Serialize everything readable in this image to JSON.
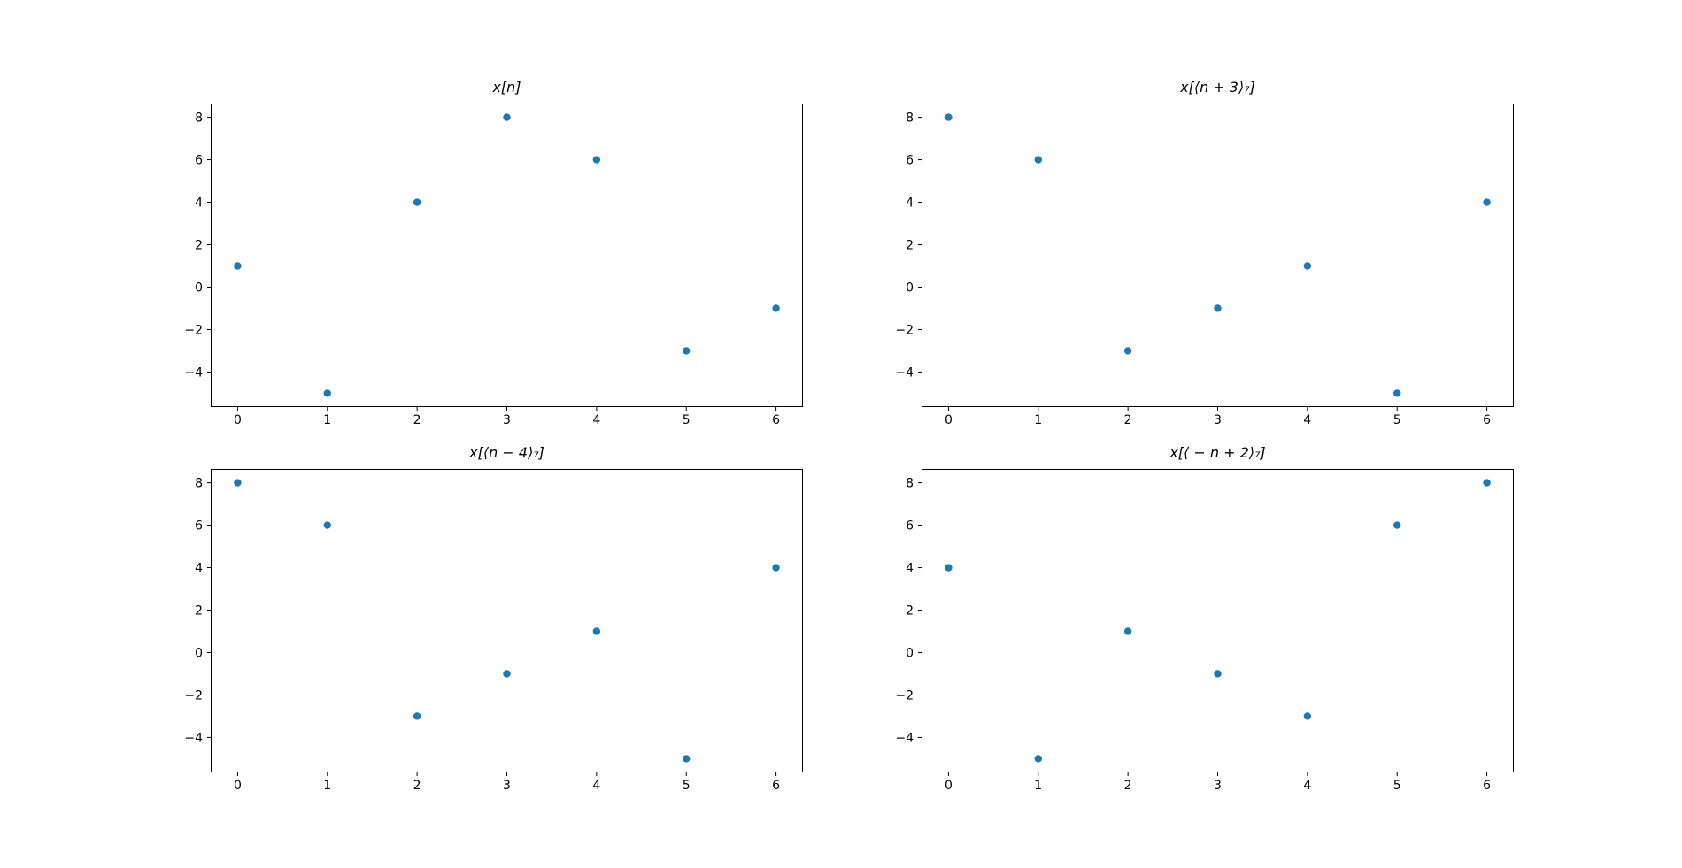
{
  "figure": {
    "background": "#ffffff",
    "axes_edge_color": "#000000",
    "text_color": "#000000"
  },
  "chart_data": [
    {
      "type": "scatter",
      "title": "x[n]",
      "x": [
        0,
        1,
        2,
        3,
        4,
        5,
        6
      ],
      "y": [
        1,
        -5,
        4,
        8,
        6,
        -3,
        -1
      ],
      "xlim": [
        -0.3,
        6.3
      ],
      "ylim": [
        -5.65,
        8.65
      ],
      "xticks": [
        0,
        1,
        2,
        3,
        4,
        5,
        6
      ],
      "xtick_labels": [
        "0",
        "1",
        "2",
        "3",
        "4",
        "5",
        "6"
      ],
      "yticks": [
        -4,
        -2,
        0,
        2,
        4,
        6,
        8
      ],
      "ytick_labels": [
        "−4",
        "−2",
        "0",
        "2",
        "4",
        "6",
        "8"
      ],
      "xlabel": "",
      "ylabel": "",
      "grid": false,
      "legend": null,
      "marker_color": "#1f77b4"
    },
    {
      "type": "scatter",
      "title": "x[⟨n + 3⟩₇]",
      "x": [
        0,
        1,
        2,
        3,
        4,
        5,
        6
      ],
      "y": [
        8,
        6,
        -3,
        -1,
        1,
        -5,
        4
      ],
      "xlim": [
        -0.3,
        6.3
      ],
      "ylim": [
        -5.65,
        8.65
      ],
      "xticks": [
        0,
        1,
        2,
        3,
        4,
        5,
        6
      ],
      "xtick_labels": [
        "0",
        "1",
        "2",
        "3",
        "4",
        "5",
        "6"
      ],
      "yticks": [
        -4,
        -2,
        0,
        2,
        4,
        6,
        8
      ],
      "ytick_labels": [
        "−4",
        "−2",
        "0",
        "2",
        "4",
        "6",
        "8"
      ],
      "xlabel": "",
      "ylabel": "",
      "grid": false,
      "legend": null,
      "marker_color": "#1f77b4"
    },
    {
      "type": "scatter",
      "title": "x[⟨n − 4⟩₇]",
      "x": [
        0,
        1,
        2,
        3,
        4,
        5,
        6
      ],
      "y": [
        8,
        6,
        -3,
        -1,
        1,
        -5,
        4
      ],
      "xlim": [
        -0.3,
        6.3
      ],
      "ylim": [
        -5.65,
        8.65
      ],
      "xticks": [
        0,
        1,
        2,
        3,
        4,
        5,
        6
      ],
      "xtick_labels": [
        "0",
        "1",
        "2",
        "3",
        "4",
        "5",
        "6"
      ],
      "yticks": [
        -4,
        -2,
        0,
        2,
        4,
        6,
        8
      ],
      "ytick_labels": [
        "−4",
        "−2",
        "0",
        "2",
        "4",
        "6",
        "8"
      ],
      "xlabel": "",
      "ylabel": "",
      "grid": false,
      "legend": null,
      "marker_color": "#1f77b4"
    },
    {
      "type": "scatter",
      "title": "x[⟨ − n + 2⟩₇]",
      "x": [
        0,
        1,
        2,
        3,
        4,
        5,
        6
      ],
      "y": [
        4,
        -5,
        1,
        -1,
        -3,
        6,
        8
      ],
      "xlim": [
        -0.3,
        6.3
      ],
      "ylim": [
        -5.65,
        8.65
      ],
      "xticks": [
        0,
        1,
        2,
        3,
        4,
        5,
        6
      ],
      "xtick_labels": [
        "0",
        "1",
        "2",
        "3",
        "4",
        "5",
        "6"
      ],
      "yticks": [
        -4,
        -2,
        0,
        2,
        4,
        6,
        8
      ],
      "ytick_labels": [
        "−4",
        "−2",
        "0",
        "2",
        "4",
        "6",
        "8"
      ],
      "xlabel": "",
      "ylabel": "",
      "grid": false,
      "legend": null,
      "marker_color": "#1f77b4"
    }
  ]
}
